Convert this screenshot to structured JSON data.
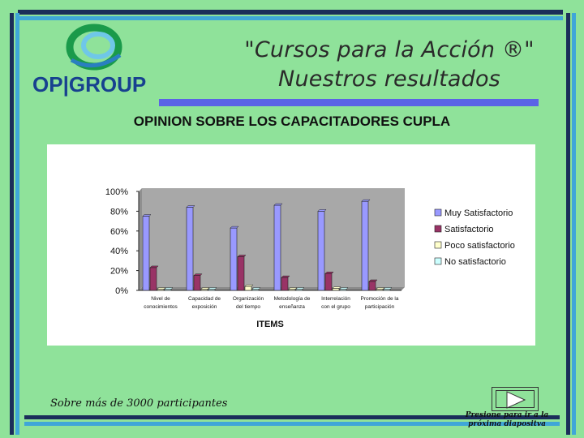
{
  "header": {
    "title_line1": "\"Cursos para la Acción ®\"",
    "title_line2": "Nuestros resultados",
    "logo_text": "OP|GROUP"
  },
  "chart_heading": "OPINION SOBRE LOS CAPACITADORES CUPLA",
  "chart_data": {
    "type": "bar",
    "xlabel": "ITEMS",
    "ylabel": "",
    "ylim": [
      0,
      1
    ],
    "yticks": [
      "0%",
      "20%",
      "40%",
      "60%",
      "80%",
      "100%"
    ],
    "categories": [
      [
        "Nivel de",
        "conocimientos"
      ],
      [
        "Capacidad de",
        "exposición"
      ],
      [
        "Organización",
        "del tiempo"
      ],
      [
        "Metodología de",
        "enseñanza"
      ],
      [
        "Interrelación",
        "con el grupo"
      ],
      [
        "Promoción de la",
        "participación"
      ]
    ],
    "series": [
      {
        "name": "Muy Satisfactorio",
        "color": "#9999ff",
        "values": [
          0.75,
          0.84,
          0.63,
          0.86,
          0.8,
          0.9
        ]
      },
      {
        "name": "Satisfactorio",
        "color": "#993366",
        "values": [
          0.23,
          0.15,
          0.34,
          0.13,
          0.17,
          0.09
        ]
      },
      {
        "name": "Poco satisfactorio",
        "color": "#ffffcc",
        "values": [
          0.01,
          0.01,
          0.04,
          0.01,
          0.02,
          0.01
        ]
      },
      {
        "name": "No satisfactorio",
        "color": "#ccffff",
        "values": [
          0.01,
          0.0,
          0.01,
          0.0,
          0.01,
          0.0
        ]
      }
    ],
    "legend_position": "right",
    "grid": false
  },
  "footer": {
    "note": "Sobre más de 3000 participantes",
    "next_label_line1": "Presione para ir a la",
    "next_label_line2": "próxima diapositva"
  }
}
